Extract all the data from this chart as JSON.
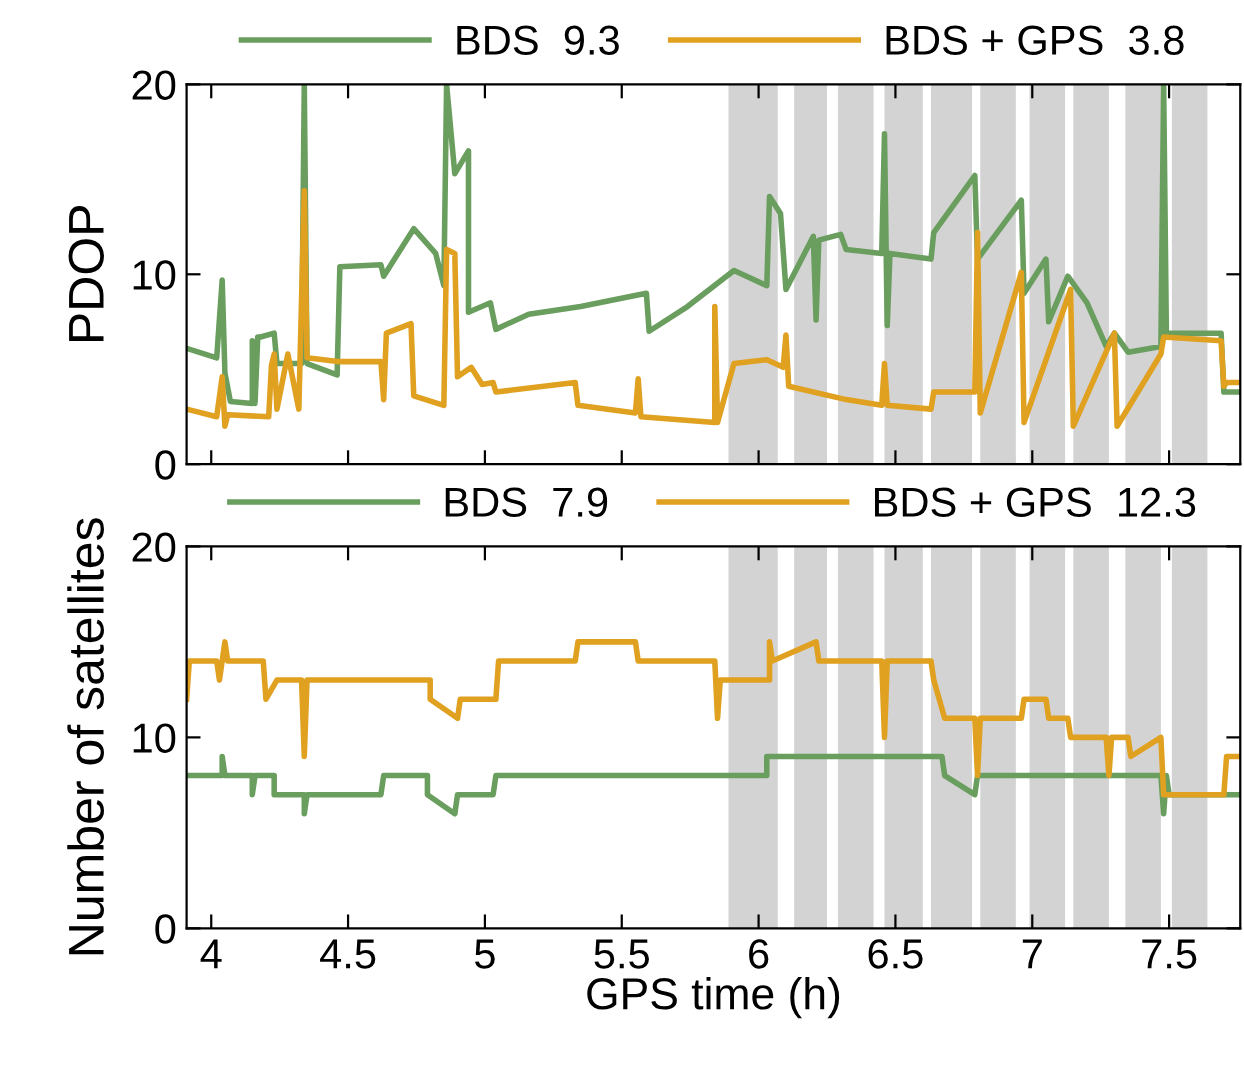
{
  "chart_data": [
    {
      "type": "line",
      "ylabel": "PDOP",
      "xlim": [
        3.91,
        7.76
      ],
      "ylim": [
        0,
        20
      ],
      "xticks": [
        4,
        4.5,
        5,
        5.5,
        6,
        6.5,
        7,
        7.5
      ],
      "yticks": [
        0,
        10,
        20
      ],
      "tick_labels": "y",
      "legend": "top",
      "grid": false,
      "bands": [
        {
          "axis": "x",
          "from": 5.89,
          "to": 6.07,
          "color": "#d3d3d3"
        },
        {
          "axis": "x",
          "from": 6.13,
          "to": 6.25,
          "color": "#d3d3d3"
        },
        {
          "axis": "x",
          "from": 6.29,
          "to": 6.42,
          "color": "#d3d3d3"
        },
        {
          "axis": "x",
          "from": 6.46,
          "to": 6.6,
          "color": "#d3d3d3"
        },
        {
          "axis": "x",
          "from": 6.63,
          "to": 6.78,
          "color": "#d3d3d3"
        },
        {
          "axis": "x",
          "from": 6.81,
          "to": 6.94,
          "color": "#d3d3d3"
        },
        {
          "axis": "x",
          "from": 6.99,
          "to": 7.12,
          "color": "#d3d3d3"
        },
        {
          "axis": "x",
          "from": 7.15,
          "to": 7.28,
          "color": "#d3d3d3"
        },
        {
          "axis": "x",
          "from": 7.34,
          "to": 7.47,
          "color": "#d3d3d3"
        },
        {
          "axis": "x",
          "from": 7.51,
          "to": 7.64,
          "color": "#d3d3d3"
        }
      ],
      "series": [
        {
          "name": "BDS  9.3",
          "color": "#6a9e5e",
          "x": [
            3.91,
            4.02,
            4.04,
            4.05,
            4.07,
            4.15,
            4.15,
            4.16,
            4.17,
            4.18,
            4.23,
            4.24,
            4.33,
            4.34,
            4.35,
            4.46,
            4.47,
            4.62,
            4.63,
            4.74,
            4.82,
            4.85,
            4.86,
            4.89,
            4.94,
            4.94,
            5.02,
            5.04,
            5.16,
            5.35,
            5.59,
            5.6,
            5.74,
            5.91,
            6.03,
            6.04,
            6.08,
            6.1,
            6.2,
            6.21,
            6.22,
            6.3,
            6.32,
            6.45,
            6.46,
            6.47,
            6.48,
            6.63,
            6.64,
            6.79,
            6.8,
            6.96,
            6.97,
            7.05,
            7.06,
            7.13,
            7.2,
            7.27,
            7.3,
            7.35,
            7.47,
            7.48,
            7.49,
            7.69,
            7.7,
            7.76
          ],
          "values": [
            6.1,
            5.6,
            9.7,
            4.8,
            3.3,
            3.2,
            6.5,
            3.2,
            6.7,
            6.7,
            6.9,
            5.3,
            5.3,
            20,
            5.3,
            4.7,
            10.4,
            10.5,
            9.9,
            12.4,
            11.1,
            9.4,
            20,
            15.3,
            16.5,
            8.0,
            8.5,
            7.1,
            7.9,
            8.3,
            9.0,
            7.0,
            8.3,
            10.2,
            9.4,
            14.1,
            13.2,
            9.2,
            12.0,
            7.6,
            11.8,
            12.1,
            11.3,
            11.1,
            17.4,
            7.3,
            11.1,
            10.8,
            12.2,
            15.2,
            10.8,
            13.9,
            9.0,
            10.8,
            7.5,
            9.9,
            8.5,
            6.2,
            6.9,
            5.9,
            6.2,
            20,
            6.9,
            6.9,
            3.8,
            3.8
          ]
        },
        {
          "name": "BDS + GPS  3.8",
          "color": "#e0a020",
          "x": [
            3.91,
            4.02,
            4.04,
            4.05,
            4.06,
            4.21,
            4.22,
            4.23,
            4.24,
            4.28,
            4.32,
            4.34,
            4.35,
            4.47,
            4.62,
            4.63,
            4.64,
            4.73,
            4.74,
            4.85,
            4.86,
            4.89,
            4.9,
            4.95,
            4.99,
            5.03,
            5.04,
            5.33,
            5.34,
            5.55,
            5.56,
            5.57,
            5.84,
            5.84,
            5.85,
            5.91,
            6.03,
            6.09,
            6.1,
            6.11,
            6.32,
            6.45,
            6.46,
            6.47,
            6.63,
            6.64,
            6.79,
            6.8,
            6.81,
            6.96,
            6.97,
            7.14,
            7.15,
            7.3,
            7.31,
            7.47,
            7.48,
            7.69,
            7.7,
            7.71,
            7.76
          ],
          "values": [
            2.9,
            2.5,
            4.6,
            2.0,
            2.6,
            2.5,
            5.2,
            5.8,
            2.9,
            5.8,
            2.9,
            14.4,
            5.6,
            5.4,
            5.4,
            3.4,
            6.9,
            7.4,
            3.6,
            3.1,
            11.3,
            11.1,
            4.6,
            5.1,
            4.2,
            4.3,
            3.8,
            4.3,
            3.1,
            2.7,
            4.5,
            2.5,
            2.2,
            8.3,
            2.2,
            5.3,
            5.5,
            5.1,
            6.8,
            4.1,
            3.4,
            3.1,
            5.3,
            3.1,
            2.9,
            3.8,
            3.8,
            12.2,
            2.7,
            10.1,
            2.2,
            9.2,
            2.0,
            6.9,
            2.0,
            5.8,
            6.7,
            6.5,
            4.1,
            4.3,
            4.3
          ]
        }
      ]
    },
    {
      "type": "line",
      "xlabel": "GPS time (h)",
      "ylabel": "Number of satellites",
      "xlim": [
        3.91,
        7.76
      ],
      "ylim": [
        0,
        20
      ],
      "xticks": [
        4,
        4.5,
        5,
        5.5,
        6,
        6.5,
        7,
        7.5
      ],
      "yticks": [
        0,
        10,
        20
      ],
      "legend": "top",
      "grid": false,
      "bands": [
        {
          "axis": "x",
          "from": 5.89,
          "to": 6.07,
          "color": "#d3d3d3"
        },
        {
          "axis": "x",
          "from": 6.13,
          "to": 6.25,
          "color": "#d3d3d3"
        },
        {
          "axis": "x",
          "from": 6.29,
          "to": 6.42,
          "color": "#d3d3d3"
        },
        {
          "axis": "x",
          "from": 6.46,
          "to": 6.6,
          "color": "#d3d3d3"
        },
        {
          "axis": "x",
          "from": 6.63,
          "to": 6.78,
          "color": "#d3d3d3"
        },
        {
          "axis": "x",
          "from": 6.81,
          "to": 6.94,
          "color": "#d3d3d3"
        },
        {
          "axis": "x",
          "from": 6.99,
          "to": 7.12,
          "color": "#d3d3d3"
        },
        {
          "axis": "x",
          "from": 7.15,
          "to": 7.28,
          "color": "#d3d3d3"
        },
        {
          "axis": "x",
          "from": 7.34,
          "to": 7.47,
          "color": "#d3d3d3"
        },
        {
          "axis": "x",
          "from": 7.51,
          "to": 7.64,
          "color": "#d3d3d3"
        }
      ],
      "series": [
        {
          "name": "BDS  7.9",
          "color": "#6a9e5e",
          "x": [
            3.91,
            4.04,
            4.04,
            4.05,
            4.15,
            4.15,
            4.16,
            4.23,
            4.23,
            4.34,
            4.34,
            4.35,
            4.62,
            4.63,
            4.79,
            4.79,
            4.89,
            4.9,
            5.03,
            5.04,
            6.03,
            6.03,
            6.67,
            6.68,
            6.79,
            6.8,
            7.47,
            7.48,
            7.49,
            7.5,
            7.76
          ],
          "values": [
            8,
            8,
            9,
            8,
            8,
            7,
            8,
            8,
            7,
            7,
            6,
            7,
            7,
            8,
            8,
            7,
            6,
            7,
            7,
            8,
            8,
            9,
            9,
            8,
            7,
            8,
            8,
            6,
            8,
            7,
            7
          ]
        },
        {
          "name": "BDS + GPS  12.3",
          "color": "#e0a020",
          "x": [
            3.91,
            3.92,
            4.02,
            4.03,
            4.05,
            4.06,
            4.19,
            4.2,
            4.24,
            4.33,
            4.34,
            4.35,
            4.8,
            4.8,
            4.9,
            4.91,
            5.04,
            5.05,
            5.33,
            5.34,
            5.55,
            5.56,
            5.84,
            5.85,
            5.86,
            6.04,
            6.04,
            6.05,
            6.21,
            6.22,
            6.45,
            6.46,
            6.47,
            6.63,
            6.64,
            6.68,
            6.79,
            6.8,
            6.81,
            6.96,
            6.97,
            7.05,
            7.06,
            7.13,
            7.14,
            7.27,
            7.28,
            7.29,
            7.35,
            7.36,
            7.47,
            7.48,
            7.7,
            7.71,
            7.76
          ],
          "values": [
            12,
            14,
            14,
            13,
            15,
            14,
            14,
            12,
            13,
            13,
            9,
            13,
            13,
            12,
            11,
            12,
            12,
            14,
            14,
            15,
            15,
            14,
            14,
            11,
            13,
            13,
            15,
            14,
            15,
            14,
            14,
            10,
            14,
            14,
            13,
            11,
            11,
            8,
            11,
            11,
            12,
            12,
            11,
            11,
            10,
            10,
            8,
            10,
            10,
            9,
            10,
            7,
            7,
            9,
            9
          ]
        }
      ]
    }
  ]
}
